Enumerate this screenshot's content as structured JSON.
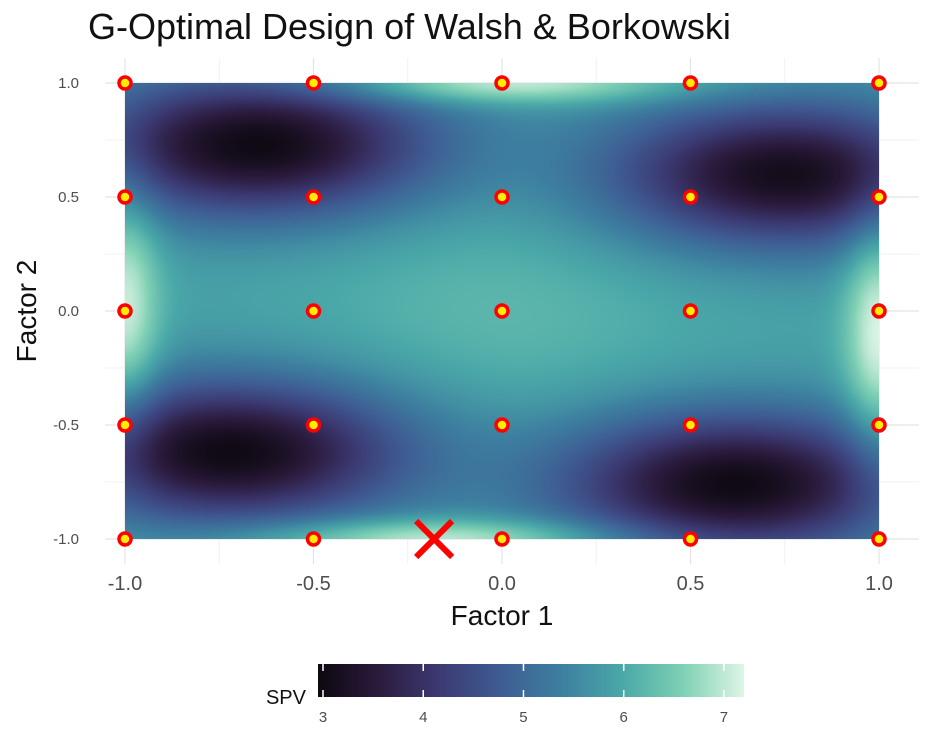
{
  "chart_data": {
    "type": "heatmap",
    "title": "G-Optimal Design of Walsh & Borkowski",
    "xlabel": "Factor 1",
    "ylabel": "Factor 2",
    "xlim": [
      -1.0,
      1.0
    ],
    "ylim": [
      -1.0,
      1.0
    ],
    "x_ticks": [
      "-1.0",
      "-0.5",
      "0.0",
      "0.5",
      "1.0"
    ],
    "y_ticks": [
      "-1.0",
      "-0.5",
      "0.0",
      "0.5",
      "1.0"
    ],
    "grid": true,
    "legend": {
      "title": "SPV",
      "position": "bottom",
      "ticks": [
        "3",
        "4",
        "5",
        "6",
        "7"
      ],
      "min": 2.95,
      "max": 7.2
    },
    "colors": {
      "scale": [
        "#0d0810",
        "#2b1b3d",
        "#3c3a73",
        "#3e5c93",
        "#3d7fa0",
        "#4aa8a8",
        "#7fd0b4",
        "#def5e5"
      ],
      "point_fill": "#ffee00",
      "point_stroke": "#ff0000",
      "max_marker": "#ff0000"
    },
    "design_points": [
      {
        "x": -1.0,
        "y": 1.0
      },
      {
        "x": -0.5,
        "y": 1.0
      },
      {
        "x": 0.0,
        "y": 1.0
      },
      {
        "x": 0.5,
        "y": 1.0
      },
      {
        "x": 1.0,
        "y": 1.0
      },
      {
        "x": -1.0,
        "y": 0.5
      },
      {
        "x": -0.5,
        "y": 0.5
      },
      {
        "x": 0.0,
        "y": 0.5
      },
      {
        "x": 0.5,
        "y": 0.5
      },
      {
        "x": 1.0,
        "y": 0.5
      },
      {
        "x": -1.0,
        "y": 0.0
      },
      {
        "x": -0.5,
        "y": 0.0
      },
      {
        "x": 0.0,
        "y": 0.0
      },
      {
        "x": 0.5,
        "y": 0.0
      },
      {
        "x": 1.0,
        "y": 0.0
      },
      {
        "x": -1.0,
        "y": -0.5
      },
      {
        "x": -0.5,
        "y": -0.5
      },
      {
        "x": 0.0,
        "y": -0.5
      },
      {
        "x": 0.5,
        "y": -0.5
      },
      {
        "x": 1.0,
        "y": -0.5
      },
      {
        "x": -1.0,
        "y": -1.0
      },
      {
        "x": -0.5,
        "y": -1.0
      },
      {
        "x": 0.0,
        "y": -1.0
      },
      {
        "x": 0.5,
        "y": -1.0
      },
      {
        "x": 1.0,
        "y": -1.0
      }
    ],
    "max_spv_point": {
      "x": -0.18,
      "y": -1.0
    },
    "spv_surface": {
      "base": 5.9,
      "center": {
        "x": 0.0,
        "y": 0.0
      },
      "minima": [
        {
          "x": -0.65,
          "y": 0.73,
          "spv": 3.0
        },
        {
          "x": 0.75,
          "y": 0.6,
          "spv": 3.1
        },
        {
          "x": -0.72,
          "y": -0.62,
          "spv": 3.0
        },
        {
          "x": 0.62,
          "y": -0.76,
          "spv": 3.0
        }
      ],
      "edge_highs": [
        {
          "x": -1.0,
          "y": 0.0,
          "spv": 7.1
        },
        {
          "x": 1.0,
          "y": -0.1,
          "spv": 7.2
        },
        {
          "x": 0.0,
          "y": 1.0,
          "spv": 7.2
        },
        {
          "x": -0.18,
          "y": -1.0,
          "spv": 7.2
        }
      ]
    }
  }
}
